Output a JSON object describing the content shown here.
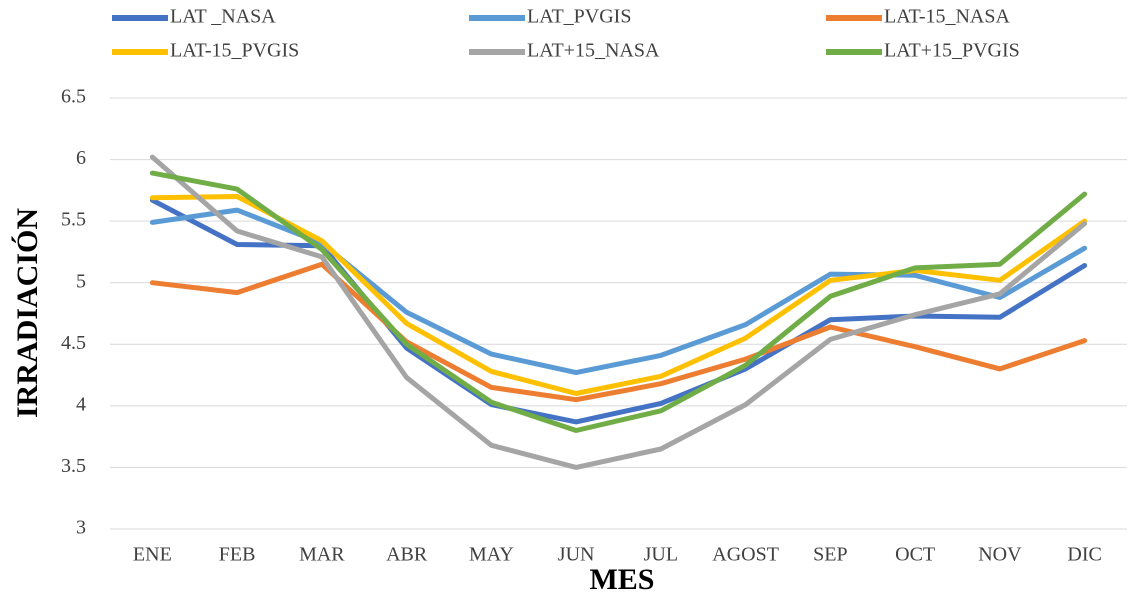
{
  "chart_data": {
    "type": "line",
    "x_label": "MES",
    "y_label": "IRRADIACIÓN",
    "categories": [
      "ENE",
      "FEB",
      "MAR",
      "ABR",
      "MAY",
      "JUN",
      "JUL",
      "AGOST",
      "SEP",
      "OCT",
      "NOV",
      "DIC"
    ],
    "series": [
      {
        "name": "LAT _NASA",
        "color": "#4472c4",
        "values": [
          5.67,
          5.31,
          5.3,
          4.47,
          4.01,
          3.87,
          4.02,
          4.3,
          4.7,
          4.73,
          4.72,
          5.14
        ]
      },
      {
        "name": "LAT_PVGIS",
        "color": "#5b9bd5",
        "values": [
          5.49,
          5.59,
          5.32,
          4.76,
          4.42,
          4.27,
          4.41,
          4.66,
          5.07,
          5.06,
          4.88,
          5.28
        ]
      },
      {
        "name": "LAT-15_NASA",
        "color": "#ed7d31",
        "values": [
          5.0,
          4.92,
          5.15,
          4.52,
          4.15,
          4.05,
          4.18,
          4.38,
          4.64,
          4.48,
          4.3,
          4.53
        ]
      },
      {
        "name": "LAT-15_PVGIS",
        "color": "#ffc000",
        "values": [
          5.69,
          5.7,
          5.34,
          4.67,
          4.28,
          4.1,
          4.24,
          4.55,
          5.02,
          5.1,
          5.02,
          5.5
        ]
      },
      {
        "name": "LAT+15_NASA",
        "color": "#a5a5a5",
        "values": [
          6.02,
          5.42,
          5.21,
          4.23,
          3.68,
          3.5,
          3.65,
          4.01,
          4.54,
          4.74,
          4.91,
          5.48
        ]
      },
      {
        "name": "LAT+15_PVGIS",
        "color": "#70ad47",
        "values": [
          5.89,
          5.76,
          5.27,
          4.5,
          4.03,
          3.8,
          3.96,
          4.33,
          4.89,
          5.12,
          5.15,
          5.72
        ]
      }
    ],
    "ylim": [
      3,
      6.5
    ],
    "yticks": [
      3,
      3.5,
      4,
      4.5,
      5,
      5.5,
      6,
      6.5
    ],
    "grid": true,
    "legend": "top"
  }
}
